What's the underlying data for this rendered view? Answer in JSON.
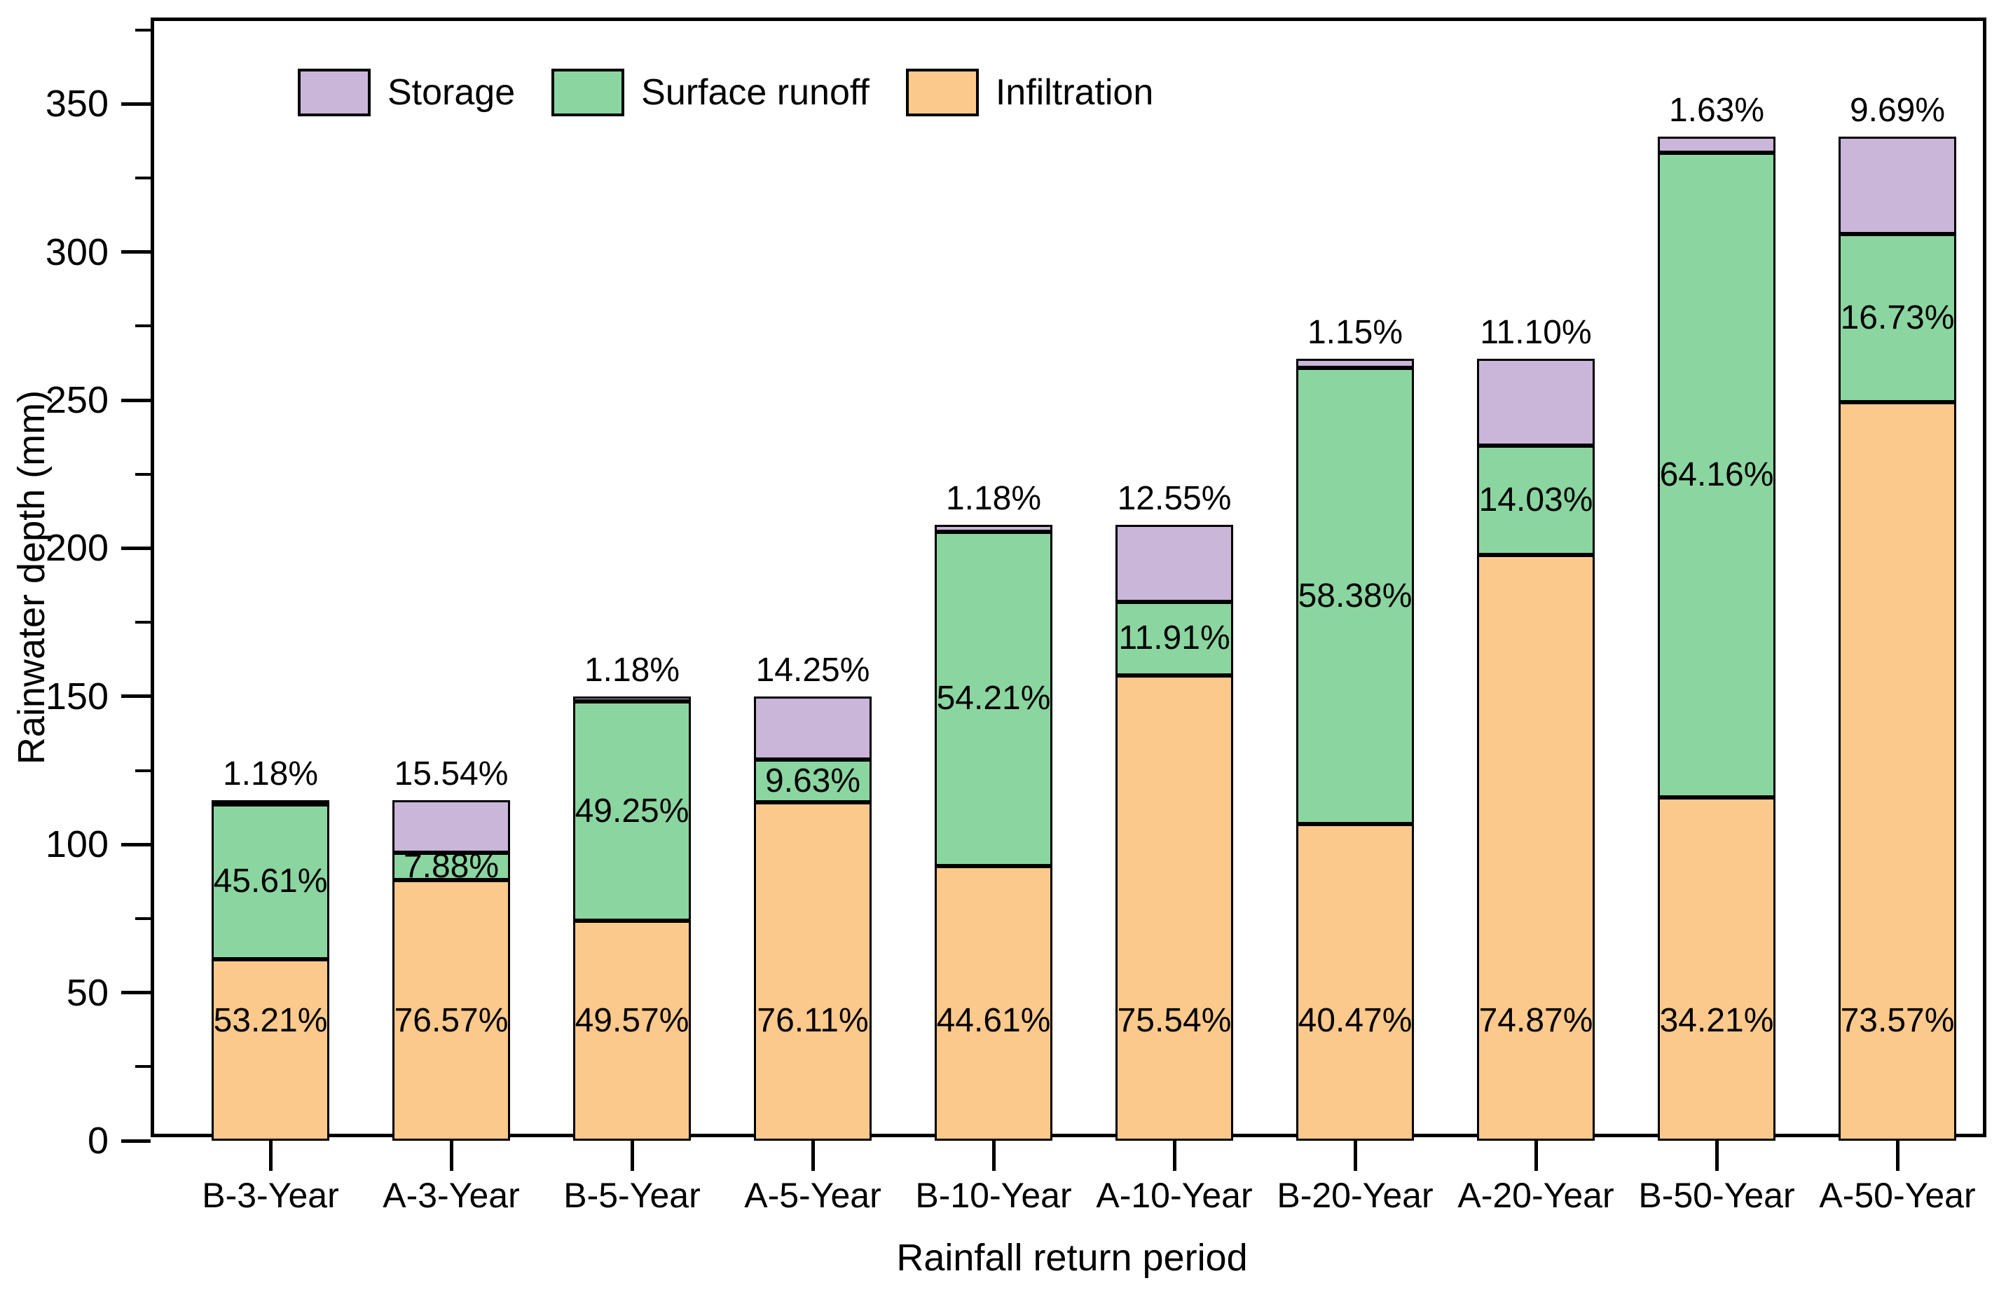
{
  "chart_data": {
    "type": "bar",
    "stacked": true,
    "title": "",
    "xlabel": "Rainfall return period",
    "ylabel": "Rainwater depth (mm)",
    "categories": [
      "B-3-Year",
      "A-3-Year",
      "B-5-Year",
      "A-5-Year",
      "B-10-Year",
      "A-10-Year",
      "B-20-Year",
      "A-20-Year",
      "B-50-Year",
      "A-50-Year"
    ],
    "totals_mm": [
      115,
      115,
      150,
      150,
      208,
      208,
      264,
      264,
      339,
      339
    ],
    "series": [
      {
        "name": "Infiltration",
        "color": "#FCC98C",
        "percent": [
          53.21,
          76.57,
          49.57,
          76.11,
          44.61,
          75.54,
          40.47,
          74.87,
          34.21,
          73.57
        ]
      },
      {
        "name": "Surface runoff",
        "color": "#8BD6A0",
        "percent": [
          45.61,
          7.88,
          49.25,
          9.63,
          54.21,
          11.91,
          58.38,
          14.03,
          64.16,
          16.73
        ]
      },
      {
        "name": "Storage",
        "color": "#C9B6D8",
        "percent": [
          1.18,
          15.54,
          1.18,
          14.25,
          1.18,
          12.55,
          1.15,
          11.1,
          1.63,
          9.69
        ]
      }
    ],
    "legend": [
      "Storage",
      "Surface runoff",
      "Infiltration"
    ],
    "legend_position": "top-left-inside",
    "ylim": [
      0,
      378
    ],
    "yticks": [
      0,
      50,
      100,
      150,
      200,
      250,
      300,
      350
    ],
    "y_minor_step": 25,
    "grid": false,
    "axis_color": "#000000",
    "text_color": "#000000"
  }
}
